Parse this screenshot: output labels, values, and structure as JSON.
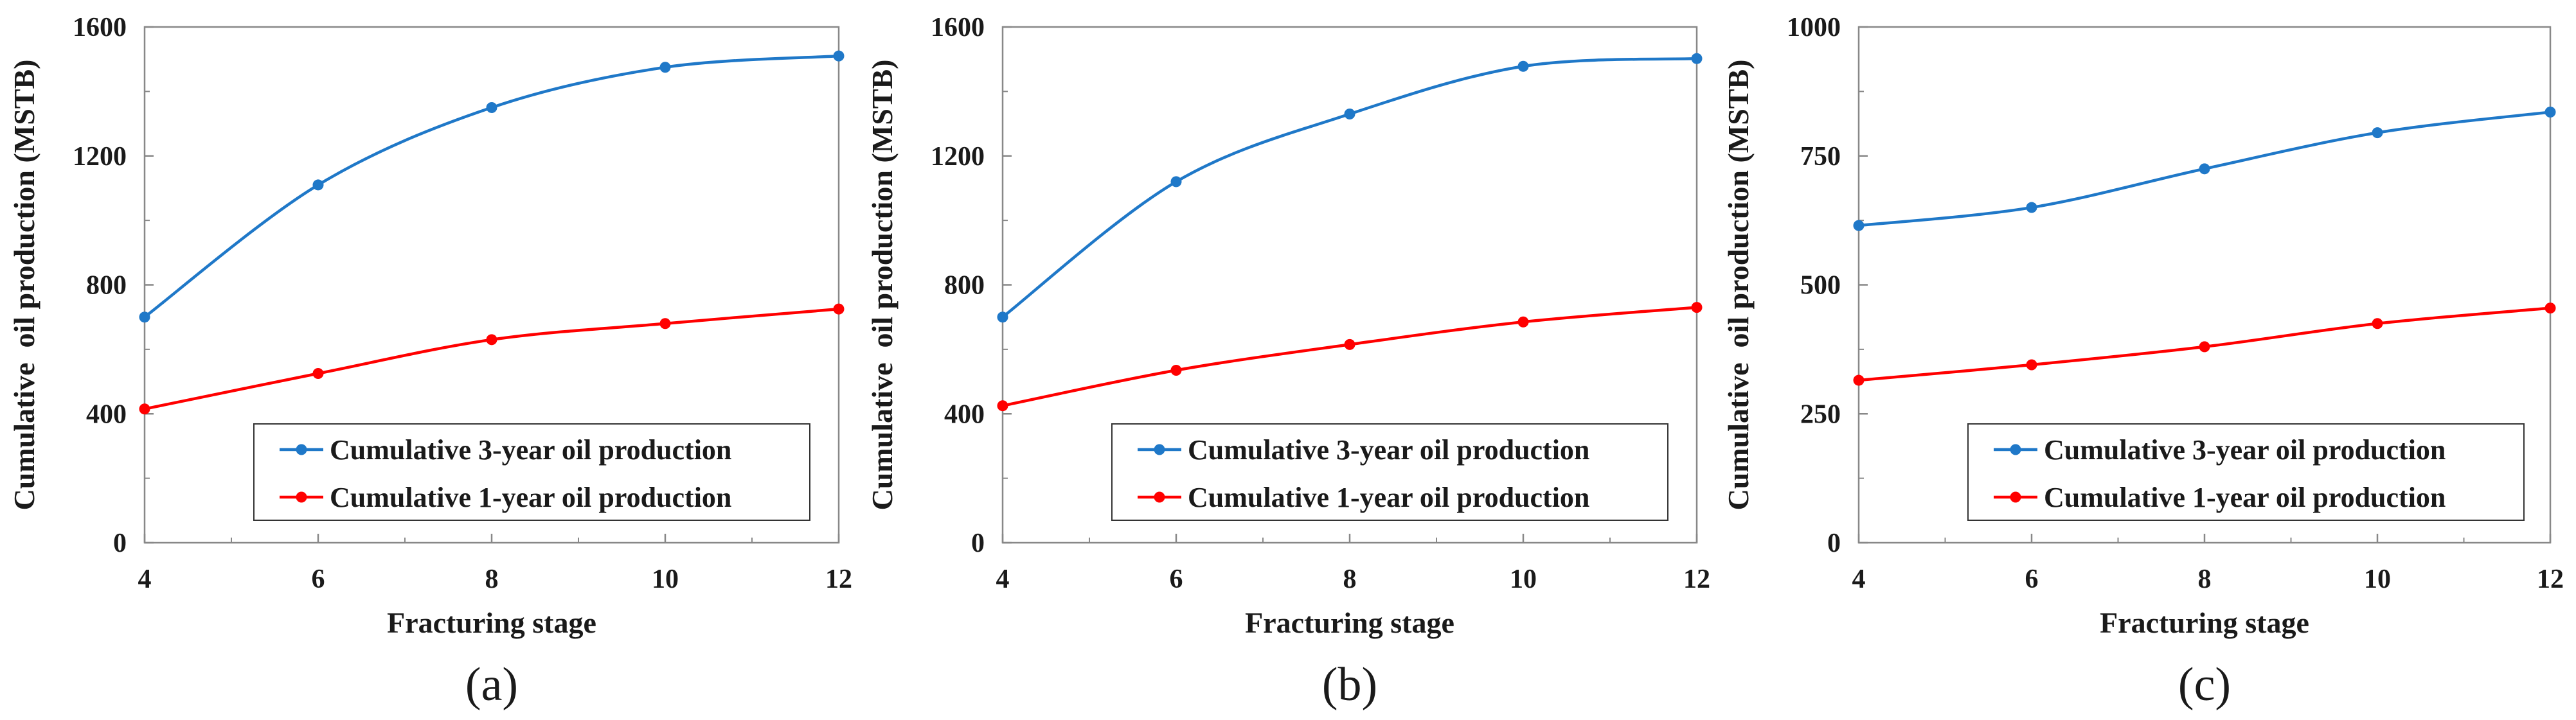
{
  "figure": {
    "panels": [
      "(a)",
      "(b)",
      "(c)"
    ]
  },
  "chart_data": [
    {
      "type": "line",
      "caption": "(a)",
      "xlabel": "Fracturing stage",
      "ylabel": "Cumulative  oil production (MSTB)",
      "x": [
        4,
        6,
        8,
        10,
        12
      ],
      "xticks": [
        4,
        6,
        8,
        10,
        12
      ],
      "xlim": [
        4,
        12
      ],
      "ylim": [
        0,
        1600
      ],
      "yticks": [
        0,
        400,
        800,
        1200,
        1600
      ],
      "legend_position": "bottom-right",
      "series": [
        {
          "name": "Cumulative 3-year oil production",
          "color": "#1f78c8",
          "values": [
            700,
            1110,
            1350,
            1475,
            1510
          ]
        },
        {
          "name": "Cumulative 1-year oil production",
          "color": "#ff0000",
          "values": [
            415,
            525,
            630,
            680,
            725
          ]
        }
      ]
    },
    {
      "type": "line",
      "caption": "(b)",
      "xlabel": "Fracturing stage",
      "ylabel": "Cumulative  oil production (MSTB)",
      "x": [
        4,
        6,
        8,
        10,
        12
      ],
      "xticks": [
        4,
        6,
        8,
        10,
        12
      ],
      "xlim": [
        4,
        12
      ],
      "ylim": [
        0,
        1600
      ],
      "yticks": [
        0,
        400,
        800,
        1200,
        1600
      ],
      "legend_position": "bottom-right",
      "series": [
        {
          "name": "Cumulative 3-year oil production",
          "color": "#1f78c8",
          "values": [
            700,
            1120,
            1330,
            1478,
            1502
          ]
        },
        {
          "name": "Cumulative 1-year oil production",
          "color": "#ff0000",
          "values": [
            425,
            535,
            615,
            685,
            730
          ]
        }
      ]
    },
    {
      "type": "line",
      "caption": "(c)",
      "xlabel": "Fracturing stage",
      "ylabel": "Cumulative  oil production (MSTB)",
      "x": [
        4,
        6,
        8,
        10,
        12
      ],
      "xticks": [
        4,
        6,
        8,
        10,
        12
      ],
      "xlim": [
        4,
        12
      ],
      "ylim": [
        0,
        1000
      ],
      "yticks": [
        0,
        250,
        500,
        750,
        1000
      ],
      "legend_position": "bottom-right",
      "series": [
        {
          "name": "Cumulative 3-year oil production",
          "color": "#1f78c8",
          "values": [
            615,
            650,
            725,
            795,
            835
          ]
        },
        {
          "name": "Cumulative 1-year oil production",
          "color": "#ff0000",
          "values": [
            315,
            345,
            380,
            425,
            455
          ]
        }
      ]
    }
  ]
}
